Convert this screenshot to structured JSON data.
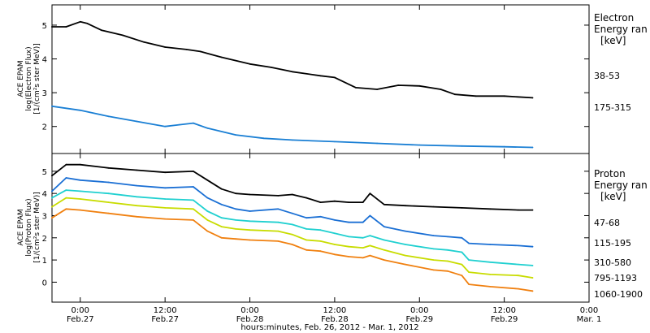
{
  "chart_data": [
    {
      "type": "line",
      "panel": "electron",
      "ylabel_lines": [
        "ACE EPAM",
        "log(Electron Flux)",
        "[1/(cm²s ster MeV)]"
      ],
      "ylim": [
        1.2,
        5.6
      ],
      "yticks": [
        2,
        3,
        4,
        5
      ],
      "legend_title": [
        "Electron",
        "Energy ran",
        "[keV]"
      ],
      "series": [
        {
          "name": "38-53",
          "color": "#000000",
          "points": [
            [
              -4,
              4.95
            ],
            [
              -2,
              4.95
            ],
            [
              0,
              5.1
            ],
            [
              1,
              5.05
            ],
            [
              3,
              4.85
            ],
            [
              6,
              4.7
            ],
            [
              9,
              4.5
            ],
            [
              12,
              4.35
            ],
            [
              15,
              4.28
            ],
            [
              17,
              4.22
            ],
            [
              20,
              4.05
            ],
            [
              24,
              3.85
            ],
            [
              27,
              3.75
            ],
            [
              30,
              3.62
            ],
            [
              34,
              3.5
            ],
            [
              36,
              3.45
            ],
            [
              39,
              3.15
            ],
            [
              42,
              3.1
            ],
            [
              45,
              3.22
            ],
            [
              48,
              3.2
            ],
            [
              51,
              3.1
            ],
            [
              53,
              2.95
            ],
            [
              56,
              2.9
            ],
            [
              60,
              2.9
            ],
            [
              64,
              2.85
            ]
          ]
        },
        {
          "name": "175-315",
          "color": "#1a7fd4",
          "points": [
            [
              -4,
              2.6
            ],
            [
              0,
              2.48
            ],
            [
              4,
              2.3
            ],
            [
              8,
              2.15
            ],
            [
              12,
              2.0
            ],
            [
              14,
              2.05
            ],
            [
              16,
              2.1
            ],
            [
              18,
              1.95
            ],
            [
              22,
              1.75
            ],
            [
              26,
              1.65
            ],
            [
              30,
              1.6
            ],
            [
              36,
              1.55
            ],
            [
              42,
              1.5
            ],
            [
              48,
              1.45
            ],
            [
              54,
              1.42
            ],
            [
              60,
              1.4
            ],
            [
              64,
              1.38
            ]
          ]
        }
      ]
    },
    {
      "type": "line",
      "panel": "proton",
      "ylabel_lines": [
        "ACE EPAM",
        "log(Proton Flux)",
        "[1/(cm²s ster MeV)]"
      ],
      "ylim": [
        -0.9,
        5.8
      ],
      "yticks": [
        0,
        1,
        2,
        3,
        4,
        5
      ],
      "legend_title": [
        "Proton",
        "Energy ran",
        "[keV]"
      ],
      "xlim": [
        -4,
        72
      ],
      "xticks": [
        {
          "x": 0,
          "label": "0:00",
          "sub": "Feb.27"
        },
        {
          "x": 12,
          "label": "12:00",
          "sub": "Feb.27"
        },
        {
          "x": 24,
          "label": "0:00",
          "sub": "Feb.28"
        },
        {
          "x": 36,
          "label": "12:00",
          "sub": "Feb.28"
        },
        {
          "x": 48,
          "label": "0:00",
          "sub": "Feb.29"
        },
        {
          "x": 60,
          "label": "12:00",
          "sub": "Feb.29"
        },
        {
          "x": 72,
          "label": "0:00",
          "sub": "Mar. 1"
        }
      ],
      "xlabel": "hours:minutes, Feb. 26, 2012 - Mar. 1, 2012",
      "series": [
        {
          "name": "47-68",
          "color": "#000000",
          "points": [
            [
              -4,
              4.8
            ],
            [
              -2,
              5.3
            ],
            [
              0,
              5.3
            ],
            [
              4,
              5.15
            ],
            [
              8,
              5.05
            ],
            [
              12,
              4.95
            ],
            [
              16,
              5.0
            ],
            [
              18,
              4.6
            ],
            [
              20,
              4.2
            ],
            [
              22,
              4.0
            ],
            [
              24,
              3.95
            ],
            [
              28,
              3.9
            ],
            [
              30,
              3.95
            ],
            [
              32,
              3.8
            ],
            [
              34,
              3.6
            ],
            [
              36,
              3.65
            ],
            [
              38,
              3.6
            ],
            [
              40,
              3.6
            ],
            [
              41,
              4.0
            ],
            [
              43,
              3.5
            ],
            [
              46,
              3.45
            ],
            [
              50,
              3.4
            ],
            [
              54,
              3.35
            ],
            [
              58,
              3.3
            ],
            [
              62,
              3.25
            ],
            [
              64,
              3.25
            ]
          ]
        },
        {
          "name": "115-195",
          "color": "#1a6fd4",
          "points": [
            [
              -4,
              4.1
            ],
            [
              -2,
              4.7
            ],
            [
              0,
              4.6
            ],
            [
              4,
              4.5
            ],
            [
              8,
              4.35
            ],
            [
              12,
              4.25
            ],
            [
              16,
              4.3
            ],
            [
              18,
              3.8
            ],
            [
              20,
              3.5
            ],
            [
              22,
              3.3
            ],
            [
              24,
              3.2
            ],
            [
              28,
              3.3
            ],
            [
              30,
              3.1
            ],
            [
              32,
              2.9
            ],
            [
              34,
              2.95
            ],
            [
              36,
              2.8
            ],
            [
              38,
              2.7
            ],
            [
              40,
              2.7
            ],
            [
              41,
              3.0
            ],
            [
              43,
              2.5
            ],
            [
              46,
              2.3
            ],
            [
              50,
              2.1
            ],
            [
              52,
              2.05
            ],
            [
              54,
              2.0
            ],
            [
              55,
              1.75
            ],
            [
              58,
              1.7
            ],
            [
              62,
              1.65
            ],
            [
              64,
              1.6
            ]
          ]
        },
        {
          "name": "310-580",
          "color": "#20d0d0",
          "points": [
            [
              -4,
              3.8
            ],
            [
              -2,
              4.15
            ],
            [
              0,
              4.1
            ],
            [
              4,
              4.0
            ],
            [
              8,
              3.85
            ],
            [
              12,
              3.75
            ],
            [
              16,
              3.7
            ],
            [
              18,
              3.2
            ],
            [
              20,
              2.9
            ],
            [
              22,
              2.8
            ],
            [
              24,
              2.75
            ],
            [
              28,
              2.7
            ],
            [
              30,
              2.6
            ],
            [
              32,
              2.4
            ],
            [
              34,
              2.35
            ],
            [
              36,
              2.2
            ],
            [
              38,
              2.05
            ],
            [
              40,
              2.0
            ],
            [
              41,
              2.1
            ],
            [
              43,
              1.9
            ],
            [
              46,
              1.7
            ],
            [
              50,
              1.5
            ],
            [
              52,
              1.45
            ],
            [
              54,
              1.35
            ],
            [
              55,
              1.0
            ],
            [
              58,
              0.9
            ],
            [
              62,
              0.8
            ],
            [
              64,
              0.75
            ]
          ]
        },
        {
          "name": "795-1193",
          "color": "#c8dc00",
          "points": [
            [
              -4,
              3.4
            ],
            [
              -2,
              3.8
            ],
            [
              0,
              3.75
            ],
            [
              4,
              3.6
            ],
            [
              8,
              3.45
            ],
            [
              12,
              3.35
            ],
            [
              16,
              3.3
            ],
            [
              18,
              2.8
            ],
            [
              20,
              2.5
            ],
            [
              22,
              2.4
            ],
            [
              24,
              2.35
            ],
            [
              28,
              2.3
            ],
            [
              30,
              2.15
            ],
            [
              32,
              1.9
            ],
            [
              34,
              1.85
            ],
            [
              36,
              1.7
            ],
            [
              38,
              1.6
            ],
            [
              40,
              1.55
            ],
            [
              41,
              1.65
            ],
            [
              43,
              1.45
            ],
            [
              46,
              1.2
            ],
            [
              50,
              1.0
            ],
            [
              52,
              0.95
            ],
            [
              54,
              0.8
            ],
            [
              55,
              0.45
            ],
            [
              58,
              0.35
            ],
            [
              62,
              0.3
            ],
            [
              64,
              0.2
            ]
          ]
        },
        {
          "name": "1060-1900",
          "color": "#f08010",
          "points": [
            [
              -4,
              2.9
            ],
            [
              -2,
              3.3
            ],
            [
              0,
              3.25
            ],
            [
              4,
              3.1
            ],
            [
              8,
              2.95
            ],
            [
              12,
              2.85
            ],
            [
              16,
              2.8
            ],
            [
              18,
              2.3
            ],
            [
              20,
              2.0
            ],
            [
              22,
              1.95
            ],
            [
              24,
              1.9
            ],
            [
              28,
              1.85
            ],
            [
              30,
              1.7
            ],
            [
              32,
              1.45
            ],
            [
              34,
              1.4
            ],
            [
              36,
              1.25
            ],
            [
              38,
              1.15
            ],
            [
              40,
              1.1
            ],
            [
              41,
              1.2
            ],
            [
              43,
              1.0
            ],
            [
              46,
              0.8
            ],
            [
              50,
              0.55
            ],
            [
              52,
              0.5
            ],
            [
              54,
              0.3
            ],
            [
              55,
              -0.1
            ],
            [
              58,
              -0.2
            ],
            [
              62,
              -0.3
            ],
            [
              64,
              -0.4
            ]
          ]
        }
      ]
    }
  ]
}
